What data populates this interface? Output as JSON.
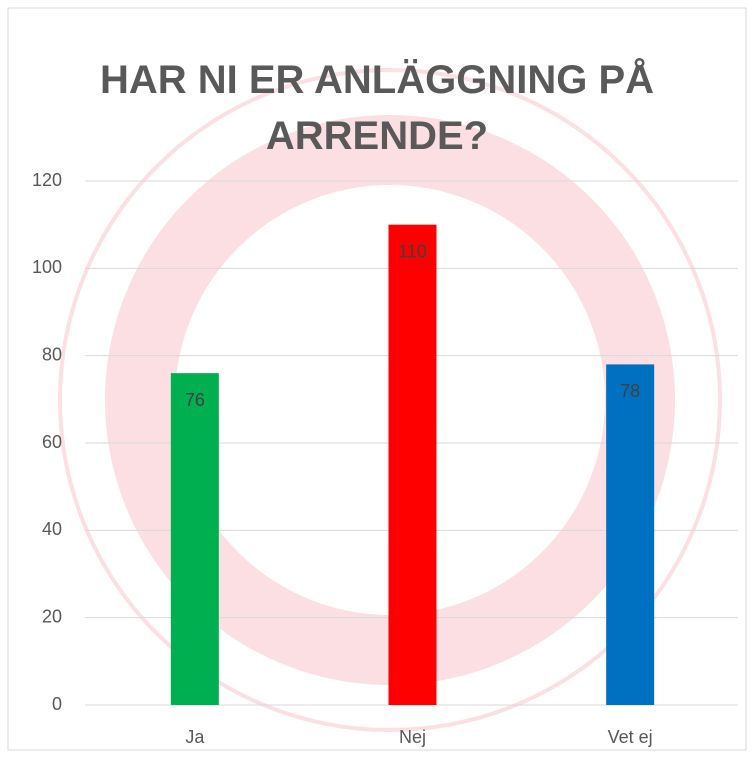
{
  "chart_data": {
    "type": "bar",
    "title": "HAR NI ER ANLÄGGNING PÅ ARRENDE?",
    "categories": [
      "Ja",
      "Nej",
      "Vet ej"
    ],
    "values": [
      76,
      110,
      78
    ],
    "colors": [
      "#00b050",
      "#ff0000",
      "#0070c0"
    ],
    "ylim": [
      0,
      120
    ],
    "yticks": [
      0,
      20,
      40,
      60,
      80,
      100,
      120
    ],
    "grid": true,
    "data_labels": true
  }
}
